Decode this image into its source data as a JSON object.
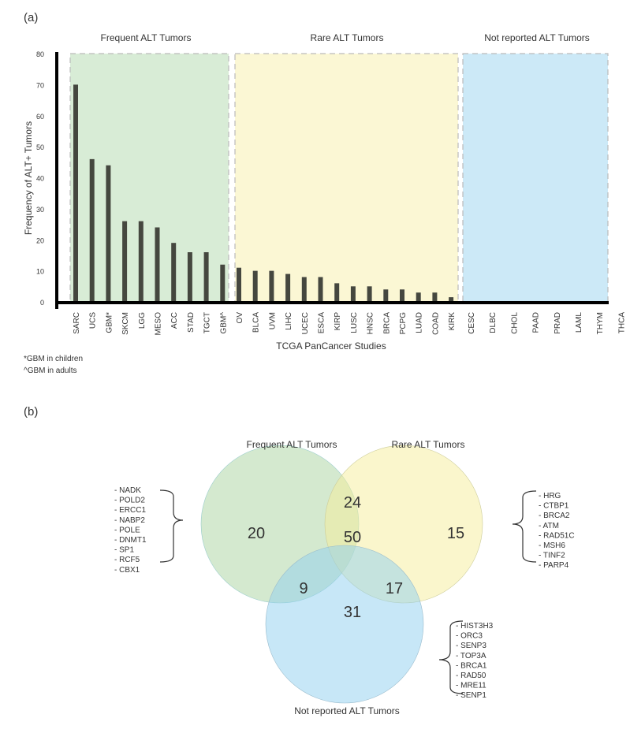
{
  "chart_data": [
    {
      "type": "bar",
      "panel_label": "(a)",
      "title": "",
      "xlabel": "TCGA PanCancer Studies",
      "ylabel": "Frequency of ALT+ Tumors",
      "ylim": [
        0,
        80
      ],
      "yticks": [
        0,
        10,
        20,
        30,
        40,
        50,
        60,
        70,
        80
      ],
      "grid": false,
      "categories": [
        "SARC",
        "UCS",
        "GBM*",
        "SKCM",
        "LGG",
        "MESO",
        "ACC",
        "STAD",
        "TGCT",
        "GBM^",
        "OV",
        "BLCA",
        "UVM",
        "LIHC",
        "UCEC",
        "ESCA",
        "KIRP",
        "LUSC",
        "HNSC",
        "BRCA",
        "PCPG",
        "LUAD",
        "COAD",
        "KIRK",
        "CESC",
        "DLBC",
        "CHOL",
        "PAAD",
        "PRAD",
        "LAML",
        "THYM",
        "THCA"
      ],
      "values": [
        70,
        46,
        44,
        26,
        26,
        24,
        19,
        16,
        16,
        12,
        11,
        10,
        10,
        9,
        8,
        8,
        6,
        5,
        5,
        4,
        4,
        3,
        3,
        1.5,
        0,
        0,
        0,
        0,
        0,
        0,
        0,
        0
      ],
      "groups": [
        {
          "name": "Frequent ALT Tumors",
          "color": "#d8ecd6",
          "from": "SARC",
          "to": "GBM^"
        },
        {
          "name": "Rare ALT Tumors",
          "color": "#fbf7d4",
          "from": "OV",
          "to": "KIRK"
        },
        {
          "name": "Not reported ALT Tumors",
          "color": "#cce9f7",
          "from": "CESC",
          "to": "THCA"
        }
      ],
      "bar_color": "#45473f",
      "footnotes": [
        "*GBM in children",
        "^GBM in adults"
      ]
    },
    {
      "type": "venn",
      "panel_label": "(b)",
      "sets": [
        {
          "name": "Frequent ALT Tumors",
          "color": "#a9d4a0"
        },
        {
          "name": "Rare ALT Tumors",
          "color": "#f5ee9a"
        },
        {
          "name": "Not reported ALT Tumors",
          "color": "#8fd0ef"
        }
      ],
      "regions": {
        "frequent_only": 20,
        "rare_only": 15,
        "not_reported_only": 31,
        "frequent_rare": 24,
        "frequent_not_reported": 9,
        "rare_not_reported": 17,
        "all_three": 50
      },
      "gene_lists": {
        "frequent": [
          "- NADK",
          "- POLD2",
          "- ERCC1",
          "- NABP2",
          "- POLE",
          "- DNMT1",
          "- SP1",
          "- RCF5",
          "- CBX1"
        ],
        "rare": [
          "- HRG",
          "- CTBP1",
          "- BRCA2",
          "- ATM",
          "- RAD51C",
          "- MSH6",
          "- TINF2",
          "- PARP4"
        ],
        "not_reported": [
          "- HIST3H3",
          "- ORC3",
          "- SENP3",
          "- TOP3A",
          "- BRCA1",
          "- RAD50",
          "- MRE11",
          "- SENP1"
        ]
      }
    }
  ]
}
